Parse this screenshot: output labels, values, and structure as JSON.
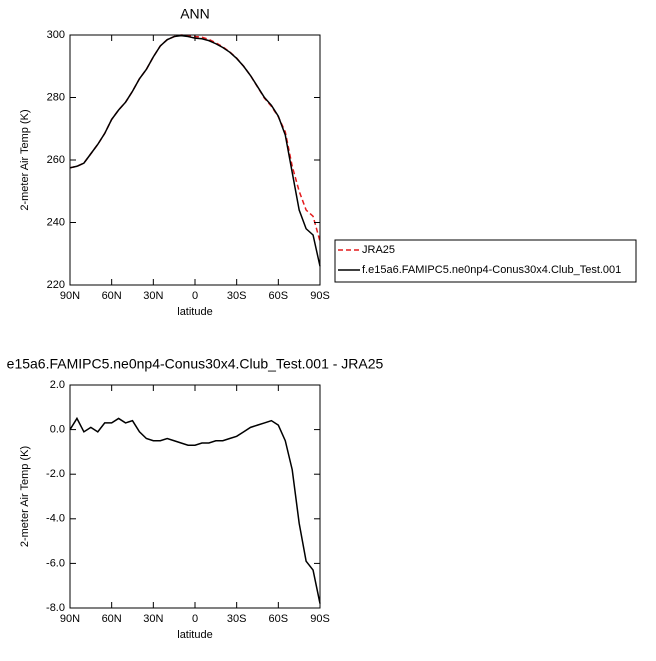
{
  "chart_data": [
    {
      "type": "line",
      "title": "ANN",
      "x_label": "latitude",
      "y_label": "2-meter Air Temp (K)",
      "x": [
        90,
        85,
        80,
        75,
        70,
        65,
        60,
        55,
        50,
        45,
        40,
        35,
        30,
        25,
        20,
        15,
        10,
        5,
        0,
        -5,
        -10,
        -15,
        -20,
        -25,
        -30,
        -35,
        -40,
        -45,
        -50,
        -55,
        -60,
        -65,
        -70,
        -75,
        -80,
        -85,
        -90
      ],
      "series": [
        {
          "name": "JRA25",
          "color": "#e41a1c",
          "dashed": true,
          "values": [
            257.5,
            258,
            259,
            262,
            265,
            268.5,
            273,
            276,
            278.5,
            282,
            286,
            289,
            293,
            296.5,
            298.5,
            299.5,
            300,
            299.8,
            299.5,
            299.3,
            298.6,
            297.5,
            296.2,
            294.6,
            292.6,
            290,
            287,
            283.4,
            279.8,
            277.2,
            273.8,
            269,
            258,
            250,
            244,
            242,
            234
          ]
        },
        {
          "name": "f.e15a6.FAMIPC5.ne0np4-Conus30x4.Club_Test.001",
          "color": "#000000",
          "dashed": false,
          "values": [
            257.5,
            258,
            259,
            262,
            265,
            268.5,
            273,
            276,
            278.5,
            282,
            286,
            289,
            293,
            296.5,
            298.5,
            299.5,
            299.8,
            299.5,
            299,
            298.8,
            298.2,
            297.2,
            296,
            294.5,
            292.5,
            290,
            287,
            283.5,
            280,
            277.5,
            274,
            268,
            256,
            244,
            238,
            236,
            226
          ]
        }
      ],
      "xlim": [
        90,
        -90
      ],
      "xticks": [
        {
          "value": 90,
          "label": "90N"
        },
        {
          "value": 60,
          "label": "60N"
        },
        {
          "value": 30,
          "label": "30N"
        },
        0,
        {
          "value": -30,
          "label": "30S"
        },
        {
          "value": -60,
          "label": "60S"
        },
        {
          "value": -90,
          "label": "90S"
        }
      ],
      "ylim": [
        220,
        300
      ],
      "yticks": [
        220,
        240,
        260,
        280,
        300
      ],
      "legend": "right"
    },
    {
      "type": "line",
      "title": "e15a6.FAMIPC5.ne0np4-Conus30x4.Club_Test.001 - JRA25",
      "x_label": "latitude",
      "y_label": "2-meter Air Temp (K)",
      "x": [
        90,
        85,
        80,
        75,
        70,
        65,
        60,
        55,
        50,
        45,
        40,
        35,
        30,
        25,
        20,
        15,
        10,
        5,
        0,
        -5,
        -10,
        -15,
        -20,
        -25,
        -30,
        -35,
        -40,
        -45,
        -50,
        -55,
        -60,
        -65,
        -70,
        -75,
        -80,
        -85,
        -90
      ],
      "series": [
        {
          "color": "#000000",
          "dashed": false,
          "values": [
            0,
            0.5,
            -0.1,
            0.1,
            -0.1,
            0.3,
            0.3,
            0.5,
            0.3,
            0.4,
            -0.1,
            -0.4,
            -0.5,
            -0.5,
            -0.4,
            -0.5,
            -0.6,
            -0.7,
            -0.7,
            -0.6,
            -0.6,
            -0.5,
            -0.5,
            -0.4,
            -0.3,
            -0.1,
            0.1,
            0.2,
            0.3,
            0.4,
            0.2,
            -0.5,
            -1.8,
            -4.2,
            -5.9,
            -6.3,
            -7.8
          ]
        }
      ],
      "xlim": [
        90,
        -90
      ],
      "xticks": [
        {
          "value": 90,
          "label": "90N"
        },
        {
          "value": 60,
          "label": "60N"
        },
        {
          "value": 30,
          "label": "30N"
        },
        0,
        {
          "value": -30,
          "label": "30S"
        },
        {
          "value": -60,
          "label": "60S"
        },
        {
          "value": -90,
          "label": "90S"
        }
      ],
      "ylim": [
        -8,
        2
      ],
      "yticks": [
        {
          "value": -8,
          "label": "-8.0"
        },
        {
          "value": -6,
          "label": "-6.0"
        },
        {
          "value": -4,
          "label": "-4.0"
        },
        {
          "value": -2,
          "label": "-2.0"
        },
        {
          "value": 0,
          "label": "0.0"
        },
        {
          "value": 2,
          "label": "2.0"
        }
      ]
    }
  ]
}
